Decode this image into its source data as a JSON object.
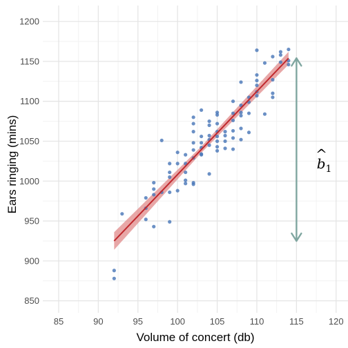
{
  "chart_data": {
    "type": "scatter",
    "title": "",
    "xlabel": "Volume of concert (db)",
    "ylabel": "Ears ringing (mins)",
    "xlim": [
      83,
      121.5
    ],
    "ylim": [
      835,
      1220
    ],
    "x_ticks": [
      85,
      90,
      95,
      100,
      105,
      110,
      115,
      120
    ],
    "y_ticks": [
      850,
      900,
      950,
      1000,
      1050,
      1100,
      1150,
      1200
    ],
    "x_tick_labels": [
      "85",
      "90",
      "95",
      "100",
      "105",
      "110",
      "115",
      "120"
    ],
    "y_tick_labels": [
      "850",
      "900",
      "950",
      "1000",
      "1050",
      "1100",
      "1150",
      "1200"
    ],
    "grid": true,
    "colors": {
      "points": "#4a78b8",
      "fit_line": "#c0282d",
      "ci_band": "#e08a8a",
      "arrow": "#7fa6a0",
      "panel_bg": "#ffffff",
      "grid_major": "#e5e5e5",
      "grid_minor": "#f2f2f2"
    },
    "points": [
      {
        "x": 92,
        "y": 888
      },
      {
        "x": 92,
        "y": 878
      },
      {
        "x": 93,
        "y": 959
      },
      {
        "x": 96,
        "y": 979
      },
      {
        "x": 96,
        "y": 966
      },
      {
        "x": 96,
        "y": 952
      },
      {
        "x": 97,
        "y": 998
      },
      {
        "x": 97,
        "y": 990
      },
      {
        "x": 97,
        "y": 983
      },
      {
        "x": 97,
        "y": 943
      },
      {
        "x": 98,
        "y": 1051
      },
      {
        "x": 98,
        "y": 986
      },
      {
        "x": 99,
        "y": 1022
      },
      {
        "x": 99,
        "y": 1011
      },
      {
        "x": 99,
        "y": 1005
      },
      {
        "x": 99,
        "y": 986
      },
      {
        "x": 99,
        "y": 949
      },
      {
        "x": 100,
        "y": 1036
      },
      {
        "x": 100,
        "y": 1022
      },
      {
        "x": 100,
        "y": 988
      },
      {
        "x": 101,
        "y": 1033
      },
      {
        "x": 101,
        "y": 1022
      },
      {
        "x": 101,
        "y": 1011
      },
      {
        "x": 101,
        "y": 1001
      },
      {
        "x": 101,
        "y": 997
      },
      {
        "x": 102,
        "y": 1080
      },
      {
        "x": 102,
        "y": 1072
      },
      {
        "x": 102,
        "y": 1062
      },
      {
        "x": 102,
        "y": 1048
      },
      {
        "x": 102,
        "y": 1039
      },
      {
        "x": 102,
        "y": 1029
      },
      {
        "x": 102,
        "y": 998
      },
      {
        "x": 102,
        "y": 996
      },
      {
        "x": 103,
        "y": 1089
      },
      {
        "x": 103,
        "y": 1056
      },
      {
        "x": 103,
        "y": 1048
      },
      {
        "x": 103,
        "y": 1042
      },
      {
        "x": 103,
        "y": 1034
      },
      {
        "x": 103,
        "y": 1033
      },
      {
        "x": 104,
        "y": 1075
      },
      {
        "x": 104,
        "y": 1070
      },
      {
        "x": 104,
        "y": 1057
      },
      {
        "x": 104,
        "y": 1052
      },
      {
        "x": 104,
        "y": 1045
      },
      {
        "x": 104,
        "y": 1009
      },
      {
        "x": 105,
        "y": 1086
      },
      {
        "x": 105,
        "y": 1083
      },
      {
        "x": 105,
        "y": 1072
      },
      {
        "x": 105,
        "y": 1062
      },
      {
        "x": 105,
        "y": 1056
      },
      {
        "x": 105,
        "y": 1050
      },
      {
        "x": 105,
        "y": 1043
      },
      {
        "x": 105,
        "y": 1038
      },
      {
        "x": 106,
        "y": 1062
      },
      {
        "x": 106,
        "y": 1057
      },
      {
        "x": 106,
        "y": 1050
      },
      {
        "x": 106,
        "y": 1041
      },
      {
        "x": 107,
        "y": 1085
      },
      {
        "x": 107,
        "y": 1076
      },
      {
        "x": 107,
        "y": 1063
      },
      {
        "x": 107,
        "y": 1054
      },
      {
        "x": 107,
        "y": 1040
      },
      {
        "x": 107,
        "y": 1100
      },
      {
        "x": 108,
        "y": 1124
      },
      {
        "x": 108,
        "y": 1095
      },
      {
        "x": 108,
        "y": 1086
      },
      {
        "x": 108,
        "y": 1082
      },
      {
        "x": 108,
        "y": 1066
      },
      {
        "x": 108,
        "y": 1052
      },
      {
        "x": 109,
        "y": 1105
      },
      {
        "x": 109,
        "y": 1099
      },
      {
        "x": 109,
        "y": 1085
      },
      {
        "x": 109,
        "y": 1061
      },
      {
        "x": 110,
        "y": 1164
      },
      {
        "x": 110,
        "y": 1133
      },
      {
        "x": 110,
        "y": 1126
      },
      {
        "x": 110,
        "y": 1120
      },
      {
        "x": 110,
        "y": 1112
      },
      {
        "x": 110,
        "y": 1107
      },
      {
        "x": 111,
        "y": 1148
      },
      {
        "x": 111,
        "y": 1084
      },
      {
        "x": 112,
        "y": 1127
      },
      {
        "x": 112,
        "y": 1110
      },
      {
        "x": 112,
        "y": 1105
      },
      {
        "x": 112,
        "y": 1156
      },
      {
        "x": 113,
        "y": 1162
      },
      {
        "x": 113,
        "y": 1158
      },
      {
        "x": 113,
        "y": 1149
      },
      {
        "x": 114,
        "y": 1165
      },
      {
        "x": 114,
        "y": 1151
      },
      {
        "x": 114,
        "y": 1146
      }
    ],
    "fit_line": {
      "x_start": 92,
      "y_start": 925,
      "x_end": 114,
      "y_end": 1154
    },
    "ci_band": {
      "x_start": 92,
      "start_half_width": 11,
      "x_end": 114,
      "end_half_width": 8
    },
    "annotation": {
      "label": "b",
      "subscript": "1",
      "accent": "^",
      "arrow_x": 115,
      "arrow_y_from": 925,
      "arrow_y_to": 1154,
      "label_x": 118.5,
      "label_y": 1022
    }
  }
}
